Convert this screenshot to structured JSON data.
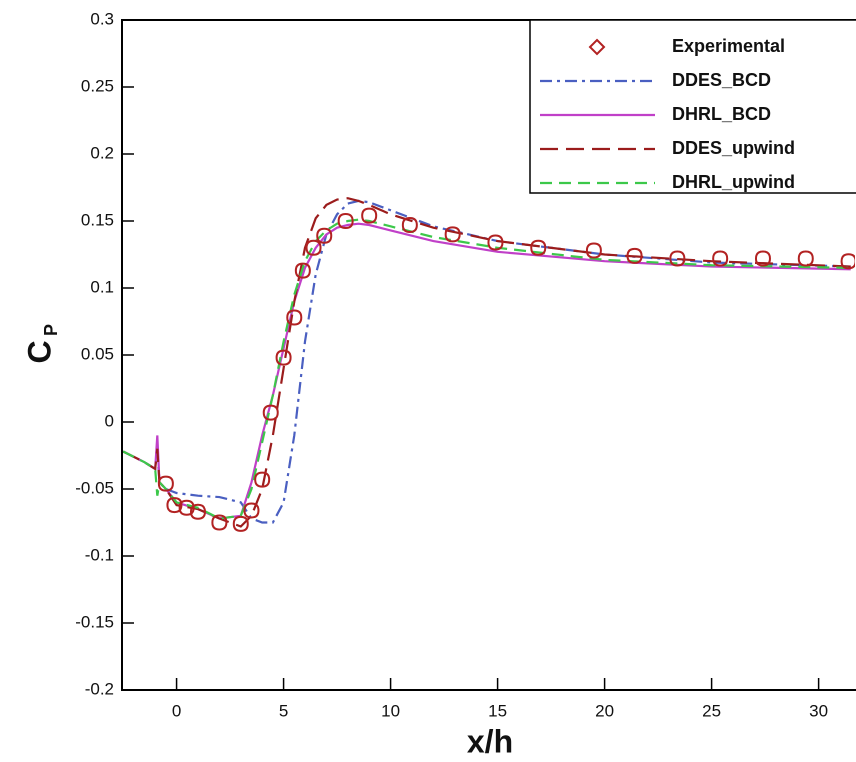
{
  "chart_data": {
    "type": "line",
    "xlabel": "x/h",
    "ylabel": "C",
    "ylabel_subscript": "P",
    "xlim": [
      -2.55,
      31.7
    ],
    "ylim": [
      -0.2,
      0.3
    ],
    "xticks": [
      0,
      5,
      10,
      15,
      20,
      25,
      30
    ],
    "yticks": [
      -0.2,
      -0.15,
      -0.1,
      -0.05,
      0,
      0.05,
      0.1,
      0.15,
      0.2,
      0.25,
      0.3
    ],
    "legend": "upper right",
    "experimental": {
      "name": "Experimental",
      "color": "#b22222",
      "x": [
        -0.5,
        -0.1,
        0.47,
        1.0,
        2.0,
        3.0,
        3.5,
        4.0,
        4.4,
        5.0,
        5.5,
        5.9,
        6.4,
        6.9,
        7.9,
        9.0,
        10.9,
        12.9,
        14.9,
        16.9,
        19.5,
        21.4,
        23.4,
        25.4,
        27.4,
        29.4,
        31.4
      ],
      "values": [
        -0.046,
        -0.062,
        -0.064,
        -0.067,
        -0.075,
        -0.076,
        -0.066,
        -0.043,
        0.007,
        0.048,
        0.078,
        0.113,
        0.13,
        0.139,
        0.15,
        0.154,
        0.147,
        0.14,
        0.134,
        0.13,
        0.128,
        0.124,
        0.122,
        0.122,
        0.122,
        0.122,
        0.12
      ]
    },
    "x": [
      -2.5,
      -1.5,
      -1.0,
      -0.9,
      -0.8,
      -0.5,
      0,
      1,
      2,
      3,
      3.5,
      4,
      4.5,
      5,
      5.5,
      6,
      6.5,
      7,
      7.5,
      8,
      8.5,
      9,
      10,
      12,
      15,
      20,
      25,
      31.5
    ],
    "series": [
      {
        "name": "DDES_BCD",
        "color": "#4a5fc1",
        "dash": "12 5 3 5",
        "values": [
          -0.022,
          -0.03,
          -0.035,
          -0.02,
          -0.045,
          -0.05,
          -0.053,
          -0.055,
          -0.056,
          -0.06,
          -0.072,
          -0.075,
          -0.075,
          -0.06,
          -0.01,
          0.06,
          0.11,
          0.14,
          0.155,
          0.163,
          0.165,
          0.164,
          0.158,
          0.146,
          0.135,
          0.125,
          0.119,
          0.116
        ]
      },
      {
        "name": "DHRL_BCD",
        "color": "#c040c8",
        "dash": "none",
        "values": [
          -0.022,
          -0.03,
          -0.035,
          -0.01,
          -0.045,
          -0.05,
          -0.06,
          -0.065,
          -0.072,
          -0.07,
          -0.045,
          -0.01,
          0.02,
          0.055,
          0.09,
          0.115,
          0.13,
          0.14,
          0.145,
          0.147,
          0.148,
          0.147,
          0.143,
          0.135,
          0.127,
          0.12,
          0.116,
          0.114
        ]
      },
      {
        "name": "DDES_upwind",
        "color": "#9b1c1c",
        "dash": "18 8",
        "values": [
          -0.022,
          -0.03,
          -0.035,
          -0.02,
          -0.045,
          -0.05,
          -0.062,
          -0.065,
          -0.072,
          -0.078,
          -0.07,
          -0.05,
          -0.01,
          0.04,
          0.09,
          0.13,
          0.152,
          0.162,
          0.166,
          0.167,
          0.165,
          0.162,
          0.155,
          0.145,
          0.135,
          0.125,
          0.12,
          0.116
        ]
      },
      {
        "name": "DHRL_upwind",
        "color": "#3cc84a",
        "dash": "12 7",
        "values": [
          -0.022,
          -0.03,
          -0.035,
          -0.055,
          -0.045,
          -0.05,
          -0.06,
          -0.064,
          -0.072,
          -0.07,
          -0.05,
          -0.015,
          0.02,
          0.06,
          0.095,
          0.12,
          0.135,
          0.143,
          0.148,
          0.15,
          0.151,
          0.15,
          0.146,
          0.138,
          0.13,
          0.121,
          0.117,
          0.115
        ]
      }
    ]
  }
}
